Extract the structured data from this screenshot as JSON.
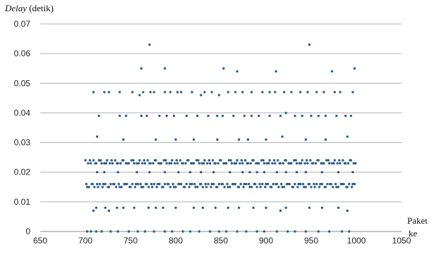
{
  "chart_data": {
    "type": "scatter",
    "title": "",
    "ylabel_italic": "Delay",
    "ylabel_rest": " (detik)",
    "xlabel_line1": "Paket",
    "xlabel_line2": "ke",
    "xlim": [
      650,
      1050
    ],
    "ylim": [
      0,
      0.07
    ],
    "x_ticks": [
      650,
      700,
      750,
      800,
      850,
      900,
      950,
      1000,
      1050
    ],
    "y_ticks": [
      0,
      0.01,
      0.02,
      0.03,
      0.04,
      0.05,
      0.06,
      0.07
    ],
    "x_tick_labels": [
      "650",
      "700",
      "750",
      "800",
      "850",
      "900",
      "950",
      "1000",
      "1050"
    ],
    "y_tick_labels": [
      "0",
      "0.01",
      "0.02",
      "0.03",
      "0.04",
      "0.05",
      "0.06",
      "0.07"
    ],
    "grid": "horizontal",
    "marker_color": "#2e5c8a",
    "grid_color": "#b0b0b0",
    "series": [
      {
        "x": [
          700,
          703,
          706,
          709,
          712,
          715,
          718,
          721,
          724,
          727,
          730,
          733,
          736,
          739,
          742,
          745,
          748,
          751,
          754,
          757,
          760,
          763,
          766,
          769,
          772,
          775,
          778,
          781,
          784,
          787,
          790,
          793,
          796,
          799,
          802,
          805,
          808,
          811,
          814,
          817,
          820,
          823,
          826,
          829,
          832,
          835,
          838,
          841,
          844,
          847,
          850,
          853,
          856,
          859,
          862,
          865,
          868,
          871,
          874,
          877,
          880,
          883,
          886,
          889,
          892,
          895,
          898,
          901,
          904,
          907,
          910,
          913,
          916,
          919,
          922,
          925,
          928,
          931,
          934,
          937,
          940,
          943,
          946,
          949,
          952,
          955,
          958,
          961,
          964,
          967,
          970,
          973,
          976,
          979,
          982,
          985,
          988,
          991,
          994,
          997,
          701,
          704,
          707,
          710,
          713,
          716,
          719,
          722,
          725,
          728,
          731,
          734,
          737,
          740,
          743,
          746,
          749,
          752,
          755,
          758,
          761,
          764,
          767,
          770,
          773,
          776,
          779,
          782,
          785,
          788,
          791,
          794,
          797,
          800,
          803,
          806,
          809,
          812,
          815,
          818,
          821,
          824,
          827,
          830,
          833,
          836,
          839,
          842,
          845,
          848,
          851,
          854,
          857,
          860,
          863,
          866,
          869,
          872,
          875,
          878,
          881,
          884,
          887,
          890,
          893,
          896,
          899,
          902,
          905,
          908,
          911,
          914,
          917,
          920,
          923,
          926,
          929,
          932,
          935,
          938,
          941,
          944,
          947,
          950,
          953,
          956,
          959,
          962,
          965,
          968,
          971,
          974,
          977,
          980,
          983,
          986,
          989,
          992,
          995,
          998,
          702,
          708,
          714,
          720,
          726,
          732,
          738,
          744,
          750,
          756,
          762,
          768,
          774,
          780,
          786,
          792,
          798,
          804,
          810,
          816,
          822,
          828,
          834,
          840,
          846,
          852,
          858,
          864,
          870,
          876,
          882,
          888,
          894,
          900,
          906,
          912,
          918,
          924,
          930,
          936,
          942,
          948,
          954,
          960,
          966,
          972,
          978,
          984,
          990,
          996,
          705,
          711,
          717,
          723,
          729,
          735,
          741,
          747,
          753,
          759,
          765,
          771,
          777,
          783,
          789,
          795,
          801,
          807,
          813,
          819,
          825,
          831,
          837,
          843,
          849,
          855,
          861,
          867,
          873,
          879,
          885,
          891,
          897,
          903,
          909,
          915,
          921,
          927,
          933,
          939,
          945,
          951,
          957,
          963,
          969,
          975,
          981,
          987,
          993,
          999,
          709,
          721,
          726,
          738,
          752,
          760,
          764,
          772,
          776,
          788,
          794,
          802,
          806,
          818,
          828,
          832,
          840,
          848,
          858,
          866,
          874,
          884,
          896,
          904,
          910,
          920,
          928,
          938,
          946,
          956,
          964,
          976,
          982,
          996,
          715,
          738,
          745,
          762,
          768,
          782,
          790,
          798,
          812,
          824,
          836,
          846,
          852,
          864,
          876,
          884,
          892,
          904,
          916,
          922,
          932,
          940,
          950,
          958,
          966,
          978,
          988,
          994,
          713,
          742,
          778,
          800,
          820,
          846,
          870,
          880,
          900,
          918,
          944,
          966,
          990,
          709,
          712,
          722,
          726,
          735,
          742,
          754,
          770,
          778,
          786,
          800,
          820,
          830,
          844,
          858,
          870,
          886,
          900,
          916,
          922,
          948,
          962,
          980,
          990,
          702,
          706,
          712,
          718,
          728,
          736,
          748,
          758,
          766,
          776,
          788,
          796,
          808,
          816,
          826,
          838,
          848,
          856,
          868,
          878,
          890,
          898,
          912,
          924,
          932,
          944,
          958,
          970,
          984,
          992,
          713,
          721,
          736,
          757,
          771,
          788,
          803,
          816,
          828,
          842,
          860,
          874,
          882,
          890,
          898,
          912,
          922,
          934,
          944,
          962,
          980,
          996,
          771,
          948,
          762,
          788,
          853,
          868,
          911,
          973,
          998
        ],
        "y": [
          0.024,
          0.023,
          0.023,
          0.024,
          0.023,
          0.024,
          0.023,
          0.023,
          0.024,
          0.023,
          0.023,
          0.024,
          0.023,
          0.023,
          0.024,
          0.023,
          0.023,
          0.024,
          0.023,
          0.023,
          0.024,
          0.023,
          0.023,
          0.024,
          0.023,
          0.023,
          0.024,
          0.023,
          0.023,
          0.024,
          0.023,
          0.023,
          0.024,
          0.023,
          0.023,
          0.024,
          0.023,
          0.023,
          0.024,
          0.023,
          0.023,
          0.024,
          0.023,
          0.023,
          0.024,
          0.023,
          0.023,
          0.024,
          0.023,
          0.023,
          0.024,
          0.023,
          0.023,
          0.024,
          0.023,
          0.023,
          0.024,
          0.023,
          0.023,
          0.024,
          0.023,
          0.023,
          0.024,
          0.023,
          0.023,
          0.024,
          0.023,
          0.023,
          0.024,
          0.023,
          0.023,
          0.024,
          0.023,
          0.023,
          0.024,
          0.023,
          0.023,
          0.024,
          0.023,
          0.023,
          0.024,
          0.023,
          0.023,
          0.024,
          0.023,
          0.023,
          0.024,
          0.023,
          0.023,
          0.024,
          0.023,
          0.023,
          0.024,
          0.023,
          0.023,
          0.024,
          0.023,
          0.023,
          0.024,
          0.023,
          0.016,
          0.015,
          0.016,
          0.015,
          0.016,
          0.016,
          0.015,
          0.016,
          0.015,
          0.016,
          0.016,
          0.015,
          0.016,
          0.015,
          0.016,
          0.016,
          0.015,
          0.016,
          0.015,
          0.016,
          0.016,
          0.015,
          0.016,
          0.015,
          0.016,
          0.016,
          0.015,
          0.016,
          0.015,
          0.016,
          0.016,
          0.015,
          0.016,
          0.015,
          0.016,
          0.016,
          0.015,
          0.016,
          0.015,
          0.016,
          0.016,
          0.015,
          0.016,
          0.015,
          0.016,
          0.016,
          0.015,
          0.016,
          0.015,
          0.016,
          0.016,
          0.015,
          0.016,
          0.015,
          0.016,
          0.016,
          0.015,
          0.016,
          0.015,
          0.016,
          0.016,
          0.015,
          0.016,
          0.015,
          0.016,
          0.016,
          0.015,
          0.016,
          0.015,
          0.016,
          0.016,
          0.015,
          0.016,
          0.015,
          0.016,
          0.016,
          0.015,
          0.016,
          0.015,
          0.016,
          0.016,
          0.015,
          0.016,
          0.015,
          0.016,
          0.016,
          0.015,
          0.016,
          0.015,
          0.016,
          0.016,
          0.015,
          0.016,
          0.015,
          0.016,
          0.016,
          0.015,
          0.016,
          0.015,
          0.016,
          0.015,
          0.016,
          0.015,
          0.016,
          0.015,
          0.016,
          0.015,
          0.016,
          0.015,
          0.016,
          0.015,
          0.016,
          0.015,
          0.016,
          0.015,
          0.016,
          0.015,
          0.016,
          0.015,
          0.016,
          0.015,
          0.016,
          0.015,
          0.016,
          0.015,
          0.016,
          0.015,
          0.016,
          0.015,
          0.016,
          0.015,
          0.016,
          0.015,
          0.016,
          0.015,
          0.016,
          0.015,
          0.016,
          0.015,
          0.016,
          0.015,
          0.016,
          0.015,
          0.016,
          0.015,
          0.016,
          0.015,
          0.016,
          0.015,
          0.016,
          0.024,
          0.023,
          0.024,
          0.023,
          0.024,
          0.023,
          0.024,
          0.023,
          0.024,
          0.023,
          0.024,
          0.023,
          0.024,
          0.023,
          0.024,
          0.023,
          0.024,
          0.023,
          0.024,
          0.023,
          0.024,
          0.023,
          0.024,
          0.023,
          0.024,
          0.023,
          0.024,
          0.023,
          0.024,
          0.023,
          0.024,
          0.023,
          0.024,
          0.023,
          0.024,
          0.023,
          0.024,
          0.023,
          0.024,
          0.023,
          0.024,
          0.023,
          0.024,
          0.023,
          0.024,
          0.023,
          0.024,
          0.023,
          0.024,
          0.023,
          0.047,
          0.047,
          0.047,
          0.047,
          0.047,
          0.046,
          0.047,
          0.047,
          0.047,
          0.047,
          0.047,
          0.047,
          0.047,
          0.047,
          0.046,
          0.047,
          0.047,
          0.046,
          0.047,
          0.047,
          0.047,
          0.047,
          0.047,
          0.047,
          0.047,
          0.047,
          0.047,
          0.047,
          0.047,
          0.047,
          0.047,
          0.047,
          0.047,
          0.047,
          0.039,
          0.039,
          0.039,
          0.039,
          0.039,
          0.039,
          0.039,
          0.039,
          0.039,
          0.039,
          0.039,
          0.039,
          0.039,
          0.039,
          0.039,
          0.039,
          0.039,
          0.039,
          0.039,
          0.04,
          0.039,
          0.039,
          0.039,
          0.039,
          0.039,
          0.039,
          0.039,
          0.039,
          0.032,
          0.031,
          0.031,
          0.031,
          0.031,
          0.031,
          0.031,
          0.031,
          0.031,
          0.032,
          0.031,
          0.031,
          0.032,
          0.007,
          0.008,
          0.008,
          0.007,
          0.008,
          0.008,
          0.008,
          0.008,
          0.008,
          0.008,
          0.008,
          0.008,
          0.008,
          0.008,
          0.008,
          0.008,
          0.008,
          0.008,
          0.007,
          0.008,
          0.008,
          0.008,
          0.008,
          0.007,
          0.0,
          0.0,
          0.0,
          0.0,
          0.0,
          0.0,
          0.0,
          0.0,
          0.0,
          0.0,
          0.0,
          0.0,
          0.0,
          0.0,
          0.0,
          0.0,
          0.0,
          0.0,
          0.0,
          0.0,
          0.0,
          0.0,
          0.0,
          0.0,
          0.0,
          0.0,
          0.0,
          0.0,
          0.0,
          0.0,
          0.02,
          0.02,
          0.02,
          0.02,
          0.02,
          0.02,
          0.02,
          0.02,
          0.02,
          0.02,
          0.02,
          0.02,
          0.02,
          0.02,
          0.02,
          0.02,
          0.02,
          0.02,
          0.02,
          0.02,
          0.02,
          0.02,
          0.063,
          0.063,
          0.055,
          0.055,
          0.055,
          0.054,
          0.054,
          0.054,
          0.055
        ]
      }
    ]
  }
}
